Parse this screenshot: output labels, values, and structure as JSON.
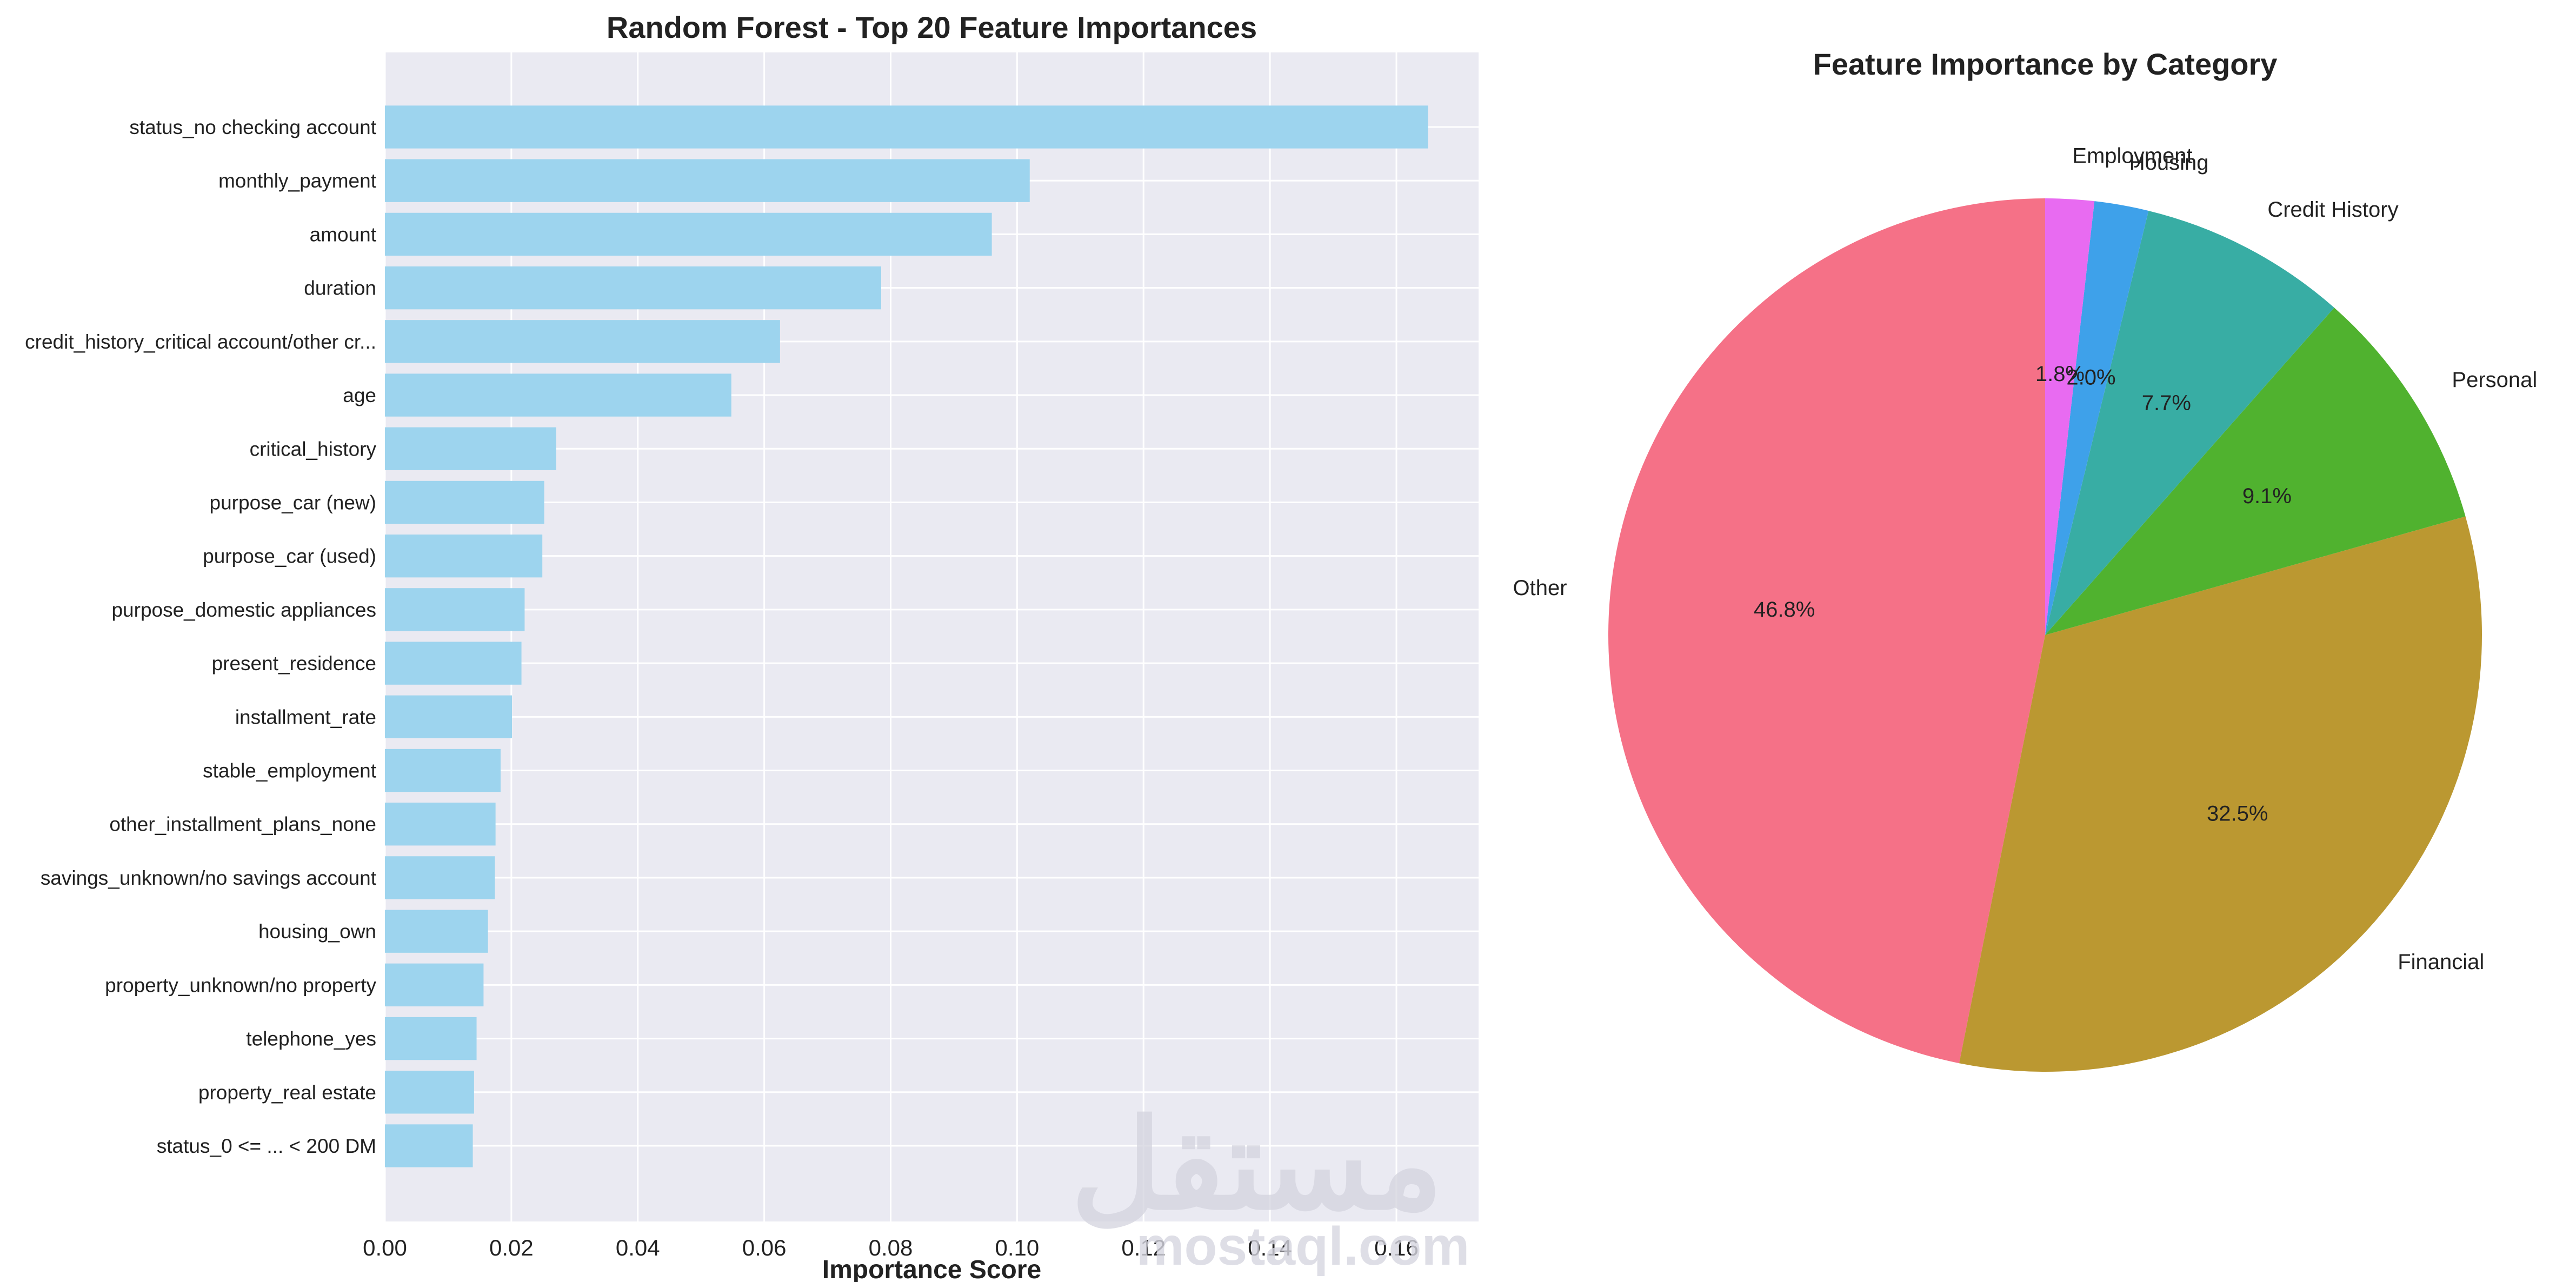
{
  "chart_data": [
    {
      "type": "bar",
      "orientation": "horizontal",
      "title": "Random Forest - Top 20 Feature Importances",
      "xlabel": "Importance Score",
      "ylabel": "",
      "xlim": [
        0,
        0.173
      ],
      "xticks": [
        "0.00",
        "0.02",
        "0.04",
        "0.06",
        "0.08",
        "0.10",
        "0.12",
        "0.14",
        "0.16"
      ],
      "grid": true,
      "bar_color": "#9dd4ee",
      "categories": [
        "status_no checking account",
        "monthly_payment",
        "amount",
        "duration",
        "credit_history_critical account/other cr...",
        "age",
        "critical_history",
        "purpose_car (new)",
        "purpose_car (used)",
        "purpose_domestic appliances",
        "present_residence",
        "installment_rate",
        "stable_employment",
        "other_installment_plans_none",
        "savings_unknown/no savings account",
        "housing_own",
        "property_unknown/no property",
        "telephone_yes",
        "property_real estate",
        "status_0 <= ... < 200 DM"
      ],
      "values": [
        0.165,
        0.102,
        0.096,
        0.0785,
        0.0625,
        0.0548,
        0.0271,
        0.0252,
        0.0249,
        0.0221,
        0.0216,
        0.0201,
        0.0183,
        0.0175,
        0.0174,
        0.0163,
        0.0156,
        0.0145,
        0.0141,
        0.0139
      ]
    },
    {
      "type": "pie",
      "title": "Feature Importance by Category",
      "start_angle_deg": 90,
      "direction": "counterclockwise",
      "slices": [
        {
          "label": "Other",
          "value": 46.8,
          "pct_label": "46.8%",
          "color": "#f57187"
        },
        {
          "label": "Financial",
          "value": 32.5,
          "pct_label": "32.5%",
          "color": "#bb9831"
        },
        {
          "label": "Personal",
          "value": 9.1,
          "pct_label": "9.1%",
          "color": "#50b22f"
        },
        {
          "label": "Credit History",
          "value": 7.7,
          "pct_label": "7.7%",
          "color": "#38ada4"
        },
        {
          "label": "Housing",
          "value": 2.0,
          "pct_label": "2.0%",
          "color": "#3ea1ea"
        },
        {
          "label": "Employment",
          "value": 1.8,
          "pct_label": "1.8%",
          "color": "#e86bf1"
        }
      ]
    }
  ],
  "watermark": {
    "arabic": "مستقل",
    "latin": "mostaql.com"
  }
}
